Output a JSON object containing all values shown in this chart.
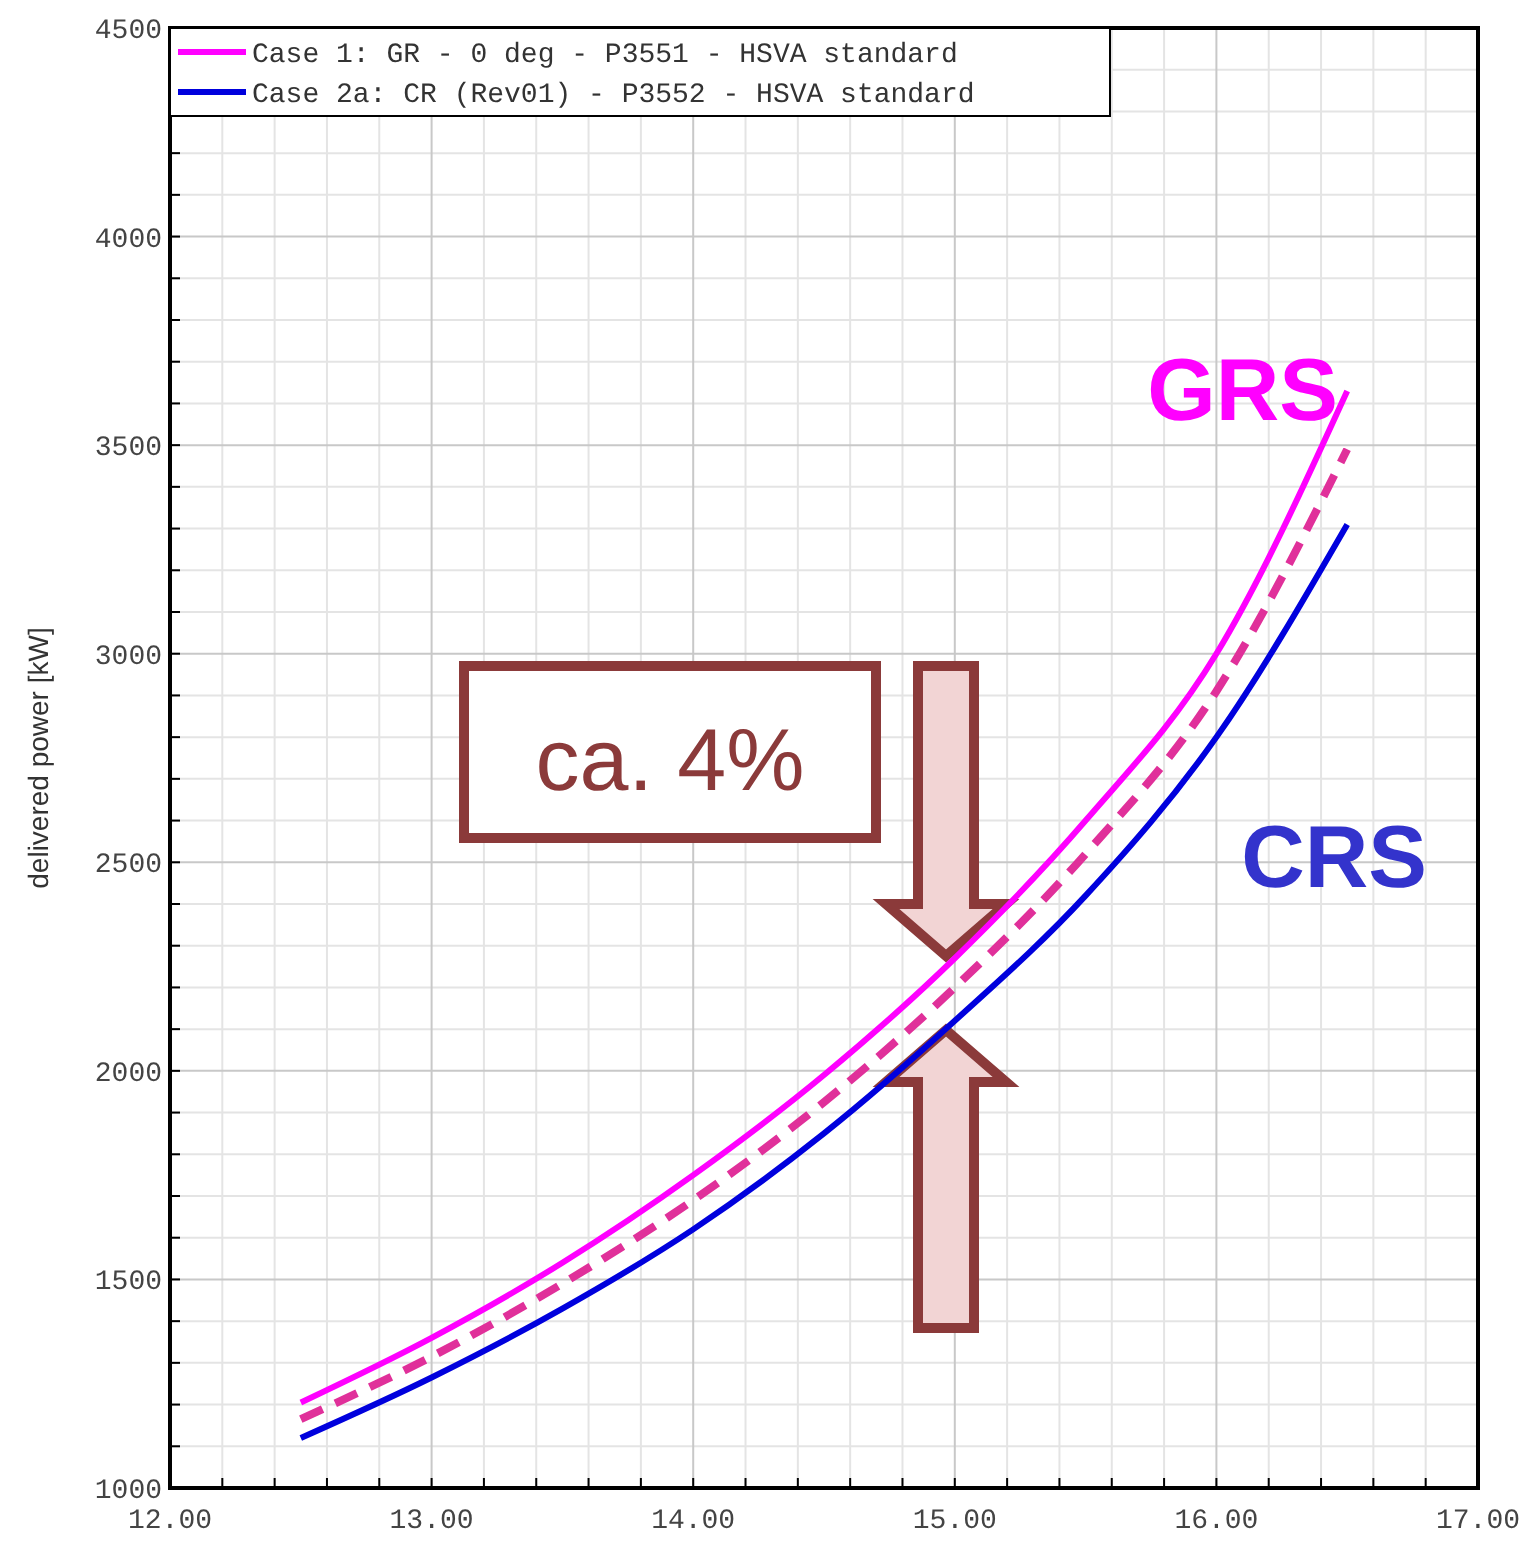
{
  "chart_data": {
    "type": "line",
    "ylabel": "delivered power [kW]",
    "x": [
      12.5,
      13,
      13.5,
      14,
      14.5,
      15,
      15.5,
      16,
      16.5
    ],
    "series": [
      {
        "name": "Case 1: GR - 0 deg - P3551 - HSVA standard",
        "color": "#ff00ff",
        "values": [
          1205,
          1360,
          1540,
          1750,
          1990,
          2270,
          2600,
          3000,
          3630
        ]
      },
      {
        "name": "Case 2a: CR (Rev01) - P3552 - HSVA standard",
        "color": "#0000dd",
        "values": [
          1120,
          1265,
          1430,
          1620,
          1850,
          2120,
          2420,
          2800,
          3310
        ]
      },
      {
        "color": "#e0309a",
        "line_style": "dashed",
        "values": [
          1165,
          1315,
          1490,
          1690,
          1925,
          2200,
          2520,
          2910,
          3490
        ]
      }
    ],
    "xlim": [
      12,
      17
    ],
    "xticks": [
      {
        "value": 12,
        "label": "12.00"
      },
      {
        "value": 13,
        "label": "13.00"
      },
      {
        "value": 14,
        "label": "14.00"
      },
      {
        "value": 15,
        "label": "15.00"
      },
      {
        "value": 16,
        "label": "16.00"
      },
      {
        "value": 17,
        "label": "17.00"
      }
    ],
    "ylim": [
      1000,
      4500
    ],
    "yticks": [
      1000,
      1500,
      2000,
      2500,
      3000,
      3500,
      4000,
      4500
    ],
    "grid": true,
    "legend": "top left",
    "line_style": "solid",
    "annotations": [
      "GRS",
      "CRS",
      "ca. 4%"
    ]
  }
}
